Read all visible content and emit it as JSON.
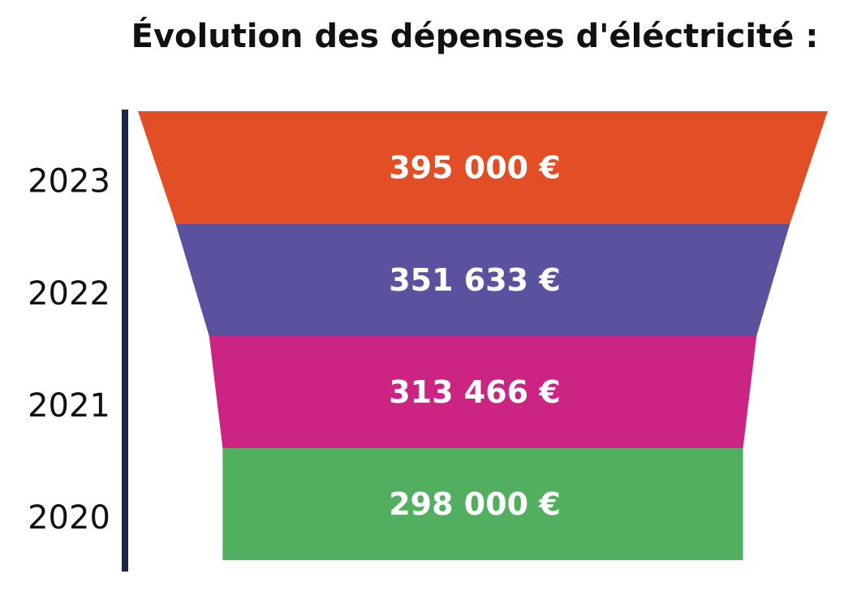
{
  "chart_data": {
    "type": "bar",
    "title": "Évolution des dépenses d'éléctricité :",
    "categories": [
      "2023",
      "2022",
      "2021",
      "2020"
    ],
    "values": [
      395000,
      351633,
      313466,
      298000
    ],
    "value_labels": [
      "395 000 €",
      "351 633 €",
      "313 466 €",
      "298 000 €"
    ],
    "colors": [
      "#E24E25",
      "#5A529F",
      "#CC2482",
      "#52AF5F"
    ],
    "axis_color": "#1C2647"
  }
}
